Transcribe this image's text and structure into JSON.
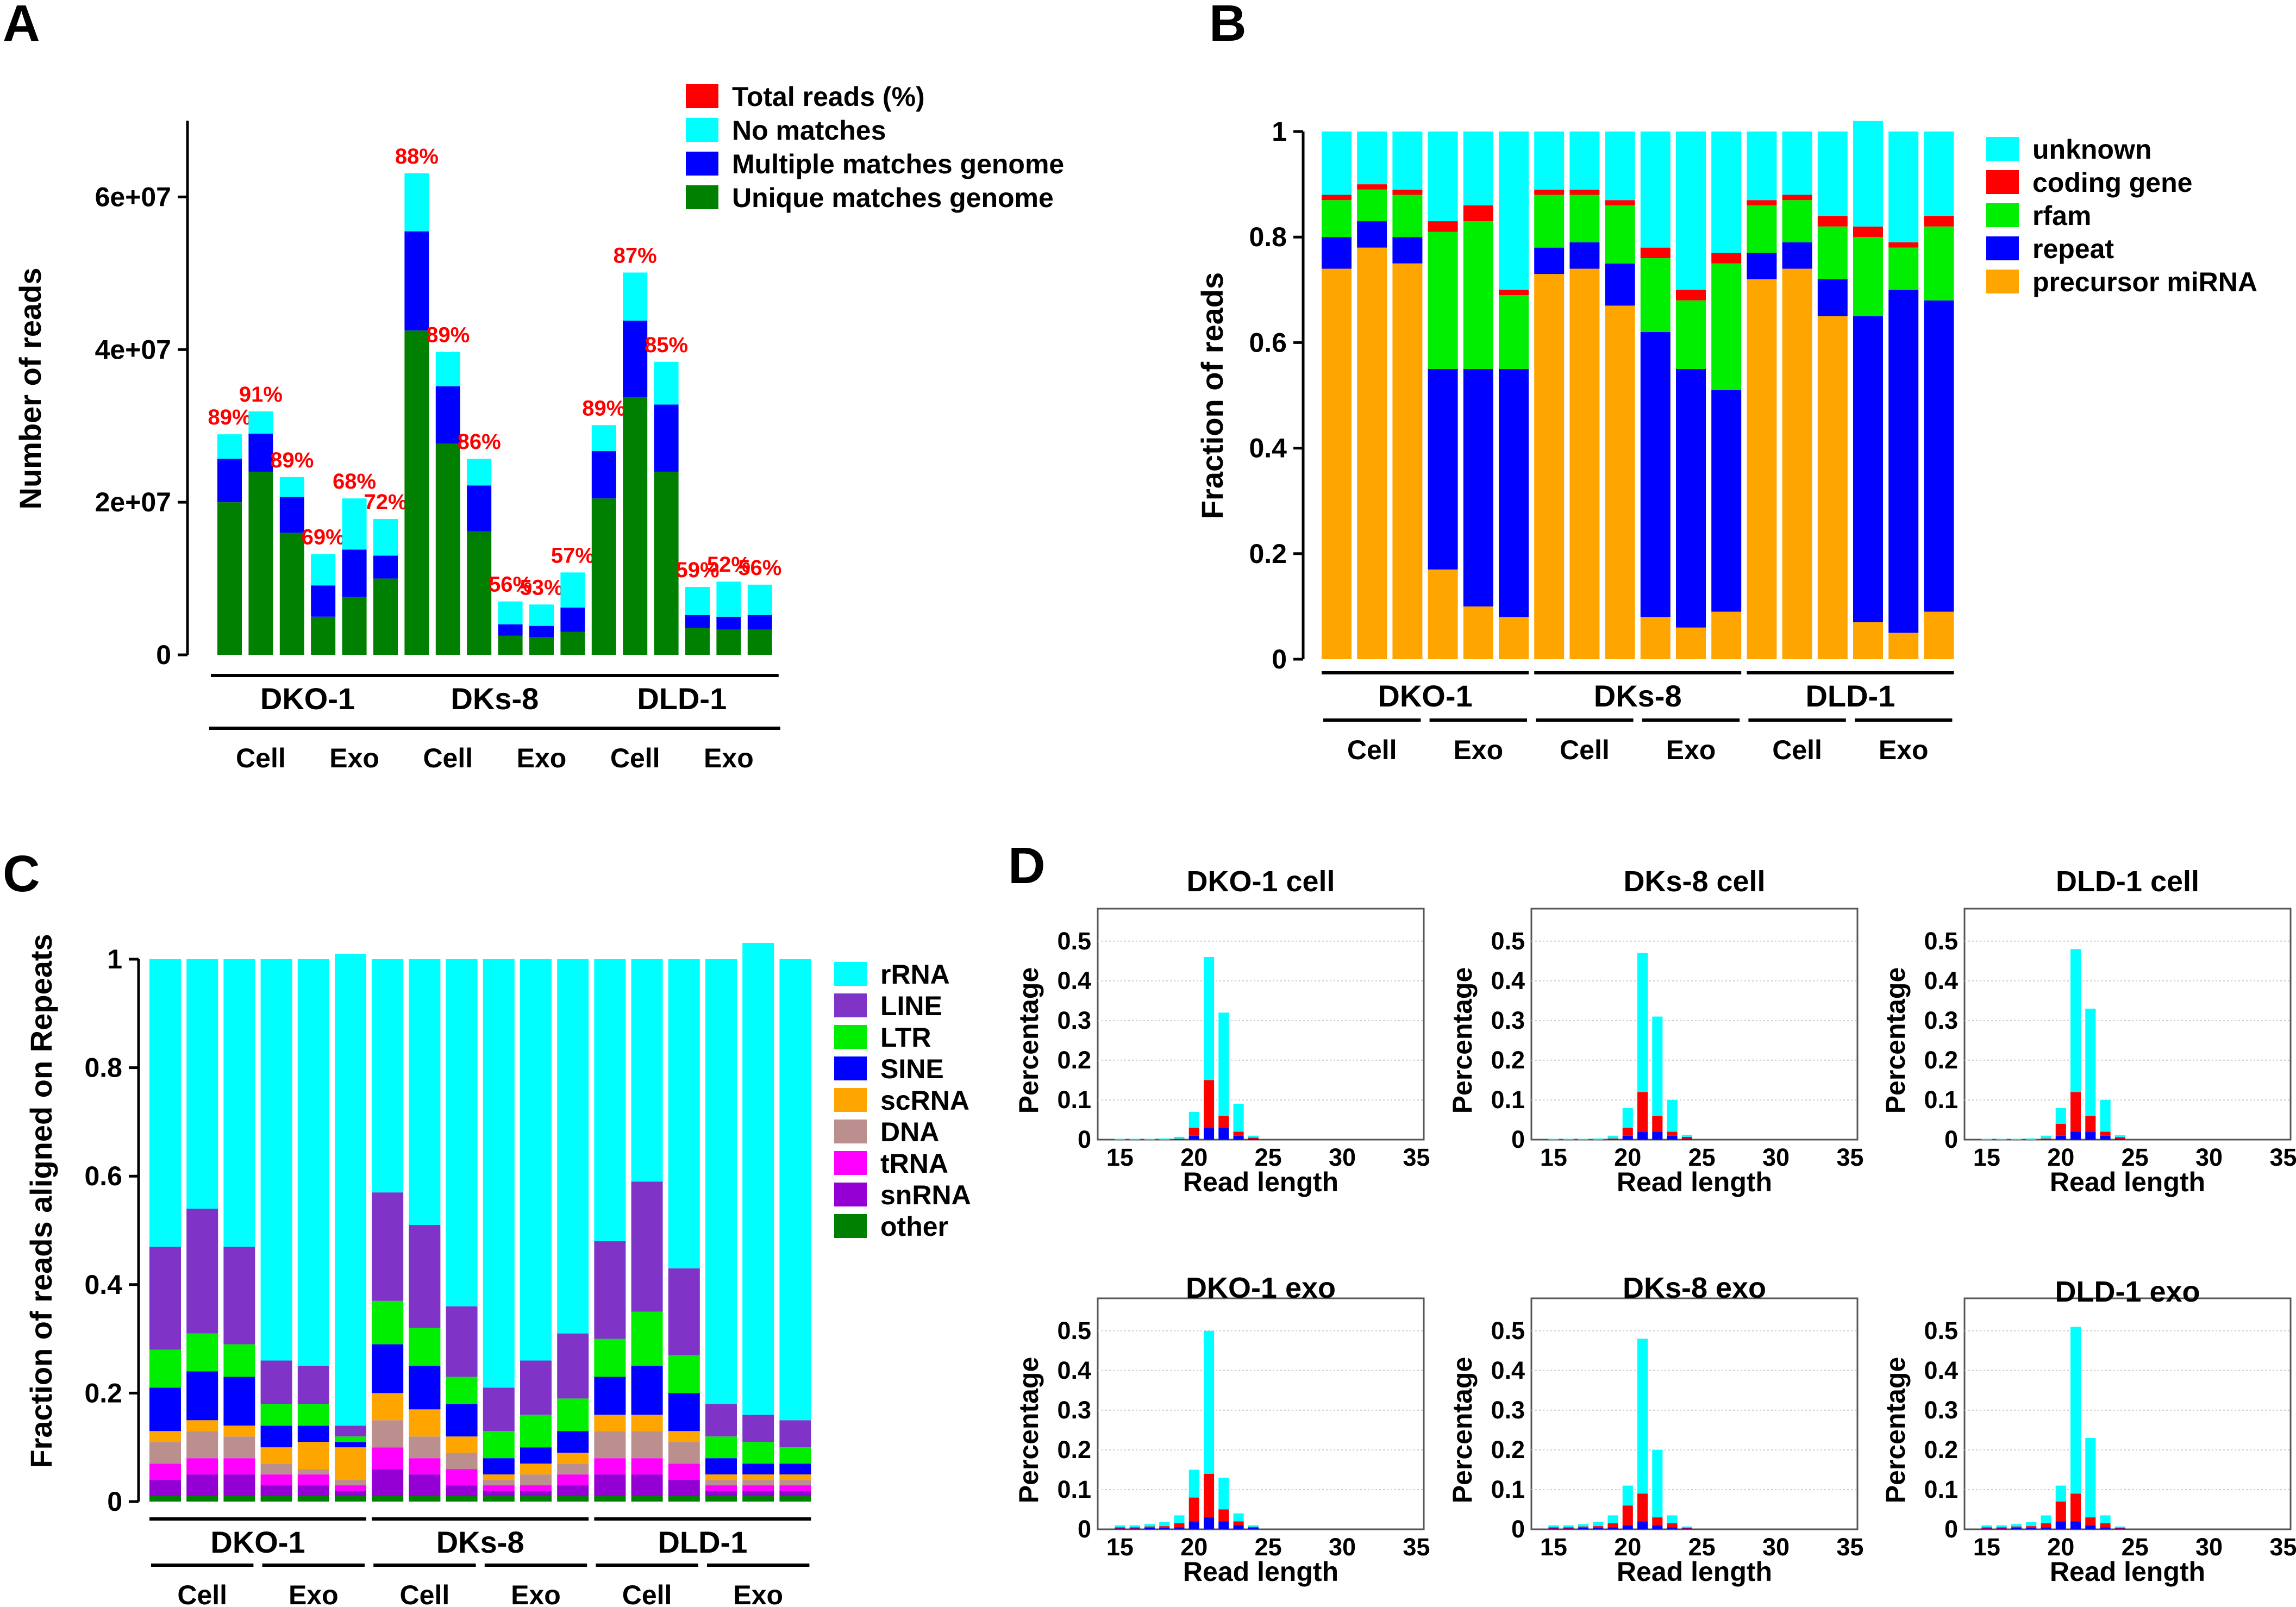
{
  "colors": {
    "total_reads": "#ff0000",
    "no_matches": "#00ffff",
    "multiple_matches": "#0000ff",
    "unique_matches": "#008000",
    "unknown": "#00ffff",
    "coding_gene": "#ff0000",
    "rfam": "#00ee00",
    "repeat": "#0000ff",
    "precursor_mirna": "#ffa500",
    "rRNA": "#00ffff",
    "LINE": "#7f33c7",
    "LTR": "#00ee00",
    "SINE": "#0000ff",
    "scRNA": "#ffa500",
    "DNA": "#bc8f8f",
    "tRNA": "#ff00ff",
    "snRNA": "#9400d3",
    "other": "#008000",
    "hist_cyan": "#00ffff",
    "hist_red": "#ff0000",
    "hist_blue": "#0000ff"
  },
  "panel_letters": [
    "A",
    "B",
    "C",
    "D"
  ],
  "groups": [
    "DKO-1",
    "DKs-8",
    "DLD-1"
  ],
  "subgroups": [
    "Cell",
    "Exo"
  ],
  "chart_data": [
    {
      "panel": "A",
      "type": "bar",
      "stacked": true,
      "ylabel": "Number of reads",
      "ylim": [
        0,
        70000000
      ],
      "yticks": [
        0,
        20000000,
        40000000,
        60000000
      ],
      "ytick_labels": [
        "0",
        "2e+07",
        "4e+07",
        "6e+07"
      ],
      "legend": [
        "Total reads (%)",
        "No matches",
        "Multiple matches genome",
        "Unique matches genome"
      ],
      "legend_position": "top-right",
      "series": [
        {
          "name": "Unique matches genome",
          "key": "unique_matches",
          "values": [
            20000000,
            24000000,
            16000000,
            5000000,
            7600000,
            10000000,
            42500000,
            27700000,
            16200000,
            2500000,
            2300000,
            3000000,
            20500000,
            33800000,
            24000000,
            3500000,
            3300000,
            3300000
          ]
        },
        {
          "name": "Multiple matches genome",
          "key": "multiple_matches",
          "values": [
            5700000,
            5000000,
            4700000,
            4100000,
            6200000,
            3000000,
            13000000,
            7500000,
            6000000,
            1500000,
            1500000,
            3200000,
            6200000,
            10000000,
            8800000,
            1700000,
            1700000,
            1900000
          ]
        },
        {
          "name": "No matches",
          "key": "no_matches",
          "values": [
            3200000,
            2900000,
            2600000,
            4100000,
            6700000,
            4800000,
            7600000,
            4500000,
            3500000,
            3000000,
            2800000,
            4600000,
            3400000,
            6300000,
            5600000,
            3700000,
            4600000,
            4000000
          ]
        }
      ],
      "percent_labels": [
        "89%",
        "91%",
        "89%",
        "69%",
        "68%",
        "72%",
        "88%",
        "89%",
        "86%",
        "56%",
        "53%",
        "57%",
        "89%",
        "87%",
        "85%",
        "59%",
        "52%",
        "56%"
      ],
      "bars_per_subgroup": 3
    },
    {
      "panel": "B",
      "type": "bar",
      "stacked": true,
      "ylabel": "Fraction of reads",
      "ylim": [
        0,
        1
      ],
      "yticks": [
        0,
        0.2,
        0.4,
        0.6,
        0.8,
        1
      ],
      "ytick_labels": [
        "0",
        "0.2",
        "0.4",
        "0.6",
        "0.8",
        "1"
      ],
      "legend": [
        "unknown",
        "coding gene",
        "rfam",
        "repeat",
        "precursor miRNA"
      ],
      "legend_position": "top-right",
      "series": [
        {
          "name": "precursor miRNA",
          "key": "precursor_mirna",
          "values": [
            0.74,
            0.78,
            0.75,
            0.17,
            0.1,
            0.08,
            0.73,
            0.74,
            0.67,
            0.08,
            0.06,
            0.09,
            0.72,
            0.74,
            0.65,
            0.07,
            0.05,
            0.09
          ]
        },
        {
          "name": "repeat",
          "key": "repeat",
          "values": [
            0.06,
            0.05,
            0.05,
            0.38,
            0.45,
            0.47,
            0.05,
            0.05,
            0.08,
            0.54,
            0.49,
            0.42,
            0.05,
            0.05,
            0.07,
            0.58,
            0.65,
            0.59
          ]
        },
        {
          "name": "rfam",
          "key": "rfam",
          "values": [
            0.07,
            0.06,
            0.08,
            0.26,
            0.28,
            0.14,
            0.1,
            0.09,
            0.11,
            0.14,
            0.13,
            0.24,
            0.09,
            0.08,
            0.1,
            0.15,
            0.08,
            0.14
          ]
        },
        {
          "name": "coding gene",
          "key": "coding_gene",
          "values": [
            0.01,
            0.01,
            0.01,
            0.02,
            0.03,
            0.01,
            0.01,
            0.01,
            0.01,
            0.02,
            0.02,
            0.02,
            0.01,
            0.01,
            0.02,
            0.02,
            0.01,
            0.02
          ]
        },
        {
          "name": "unknown",
          "key": "unknown",
          "values": [
            0.12,
            0.1,
            0.11,
            0.17,
            0.14,
            0.3,
            0.11,
            0.11,
            0.13,
            0.22,
            0.3,
            0.23,
            0.13,
            0.12,
            0.16,
            0.2,
            0.21,
            0.16
          ]
        }
      ],
      "bars_per_subgroup": 3
    },
    {
      "panel": "C",
      "type": "bar",
      "stacked": true,
      "ylabel": "Fraction of reads aligned on Repeats",
      "ylim": [
        0,
        1
      ],
      "yticks": [
        0,
        0.2,
        0.4,
        0.6,
        0.8,
        1
      ],
      "ytick_labels": [
        "0",
        "0.2",
        "0.4",
        "0.6",
        "0.8",
        "1"
      ],
      "legend": [
        "rRNA",
        "LINE",
        "LTR",
        "SINE",
        "scRNA",
        "DNA",
        "tRNA",
        "snRNA",
        "other"
      ],
      "legend_position": "right",
      "series": [
        {
          "name": "other",
          "key": "other",
          "values": [
            0.01,
            0.01,
            0.01,
            0.01,
            0.01,
            0.01,
            0.01,
            0.01,
            0.01,
            0.01,
            0.01,
            0.01,
            0.01,
            0.01,
            0.01,
            0.01,
            0.01,
            0.01
          ]
        },
        {
          "name": "snRNA",
          "key": "snRNA",
          "values": [
            0.03,
            0.04,
            0.04,
            0.02,
            0.02,
            0.01,
            0.05,
            0.04,
            0.02,
            0.01,
            0.01,
            0.02,
            0.04,
            0.04,
            0.03,
            0.01,
            0.01,
            0.01
          ]
        },
        {
          "name": "tRNA",
          "key": "tRNA",
          "values": [
            0.03,
            0.03,
            0.03,
            0.02,
            0.02,
            0.01,
            0.04,
            0.03,
            0.03,
            0.01,
            0.01,
            0.02,
            0.03,
            0.03,
            0.03,
            0.01,
            0.01,
            0.01
          ]
        },
        {
          "name": "DNA",
          "key": "DNA",
          "values": [
            0.04,
            0.05,
            0.04,
            0.02,
            0.01,
            0.01,
            0.05,
            0.04,
            0.03,
            0.01,
            0.02,
            0.02,
            0.05,
            0.05,
            0.04,
            0.01,
            0.01,
            0.01
          ]
        },
        {
          "name": "scRNA",
          "key": "scRNA",
          "values": [
            0.02,
            0.02,
            0.02,
            0.03,
            0.05,
            0.06,
            0.05,
            0.05,
            0.03,
            0.01,
            0.02,
            0.02,
            0.03,
            0.03,
            0.02,
            0.01,
            0.01,
            0.01
          ]
        },
        {
          "name": "SINE",
          "key": "SINE",
          "values": [
            0.08,
            0.09,
            0.09,
            0.04,
            0.03,
            0.01,
            0.09,
            0.08,
            0.06,
            0.03,
            0.03,
            0.04,
            0.07,
            0.09,
            0.07,
            0.03,
            0.02,
            0.02
          ]
        },
        {
          "name": "LTR",
          "key": "LTR",
          "values": [
            0.07,
            0.07,
            0.06,
            0.04,
            0.04,
            0.01,
            0.08,
            0.07,
            0.05,
            0.05,
            0.06,
            0.06,
            0.07,
            0.1,
            0.07,
            0.04,
            0.04,
            0.03
          ]
        },
        {
          "name": "LINE",
          "key": "LINE",
          "values": [
            0.19,
            0.23,
            0.18,
            0.08,
            0.07,
            0.02,
            0.2,
            0.19,
            0.13,
            0.08,
            0.1,
            0.12,
            0.18,
            0.24,
            0.16,
            0.06,
            0.05,
            0.05
          ]
        },
        {
          "name": "rRNA",
          "key": "rRNA",
          "values": [
            0.53,
            0.46,
            0.53,
            0.74,
            0.75,
            0.87,
            0.43,
            0.49,
            0.64,
            0.79,
            0.74,
            0.69,
            0.52,
            0.41,
            0.57,
            0.82,
            0.87,
            0.85
          ]
        }
      ],
      "bars_per_subgroup": 3
    },
    {
      "panel": "D",
      "type": "bar",
      "stacked": true,
      "xlabel": "Read length",
      "ylabel": "Percentage",
      "xlim": [
        13.5,
        35.5
      ],
      "ylim": [
        0,
        0.55
      ],
      "xticks": [
        15,
        20,
        25,
        30,
        35
      ],
      "yticks": [
        0,
        0.1,
        0.2,
        0.3,
        0.4,
        0.5
      ],
      "ytick_labels": [
        "0",
        "0.1",
        "0.2",
        "0.3",
        "0.4",
        "0.5"
      ],
      "series_names": [
        "blue",
        "red",
        "cyan"
      ],
      "histograms": [
        {
          "title": "DKO-1 cell",
          "x": [
            15,
            16,
            17,
            18,
            19,
            20,
            21,
            22,
            23,
            24
          ],
          "blue": [
            0,
            0,
            0,
            0,
            0.001,
            0.01,
            0.03,
            0.03,
            0.01,
            0.002
          ],
          "red": [
            0,
            0,
            0,
            0,
            0.001,
            0.02,
            0.12,
            0.03,
            0.01,
            0.003
          ],
          "cyan": [
            0.002,
            0.002,
            0.002,
            0.003,
            0.005,
            0.04,
            0.31,
            0.26,
            0.07,
            0.005
          ]
        },
        {
          "title": "DKs-8 cell",
          "x": [
            15,
            16,
            17,
            18,
            19,
            20,
            21,
            22,
            23,
            24
          ],
          "blue": [
            0,
            0,
            0,
            0,
            0.001,
            0.01,
            0.02,
            0.02,
            0.01,
            0.002
          ],
          "red": [
            0,
            0,
            0,
            0,
            0.002,
            0.02,
            0.1,
            0.04,
            0.01,
            0.005
          ],
          "cyan": [
            0.002,
            0.002,
            0.002,
            0.003,
            0.007,
            0.05,
            0.35,
            0.25,
            0.08,
            0.005
          ]
        },
        {
          "title": "DLD-1 cell",
          "x": [
            15,
            16,
            17,
            18,
            19,
            20,
            21,
            22,
            23,
            24
          ],
          "blue": [
            0,
            0,
            0,
            0,
            0.001,
            0.01,
            0.02,
            0.02,
            0.01,
            0.002
          ],
          "red": [
            0,
            0,
            0,
            0,
            0.002,
            0.03,
            0.1,
            0.04,
            0.01,
            0.004
          ],
          "cyan": [
            0.002,
            0.002,
            0.002,
            0.003,
            0.007,
            0.04,
            0.36,
            0.27,
            0.08,
            0.005
          ]
        },
        {
          "title": "DKO-1 exo",
          "x": [
            15,
            16,
            17,
            18,
            19,
            20,
            21,
            22,
            23,
            24
          ],
          "blue": [
            0.002,
            0.002,
            0.003,
            0.003,
            0.005,
            0.02,
            0.03,
            0.02,
            0.01,
            0.003
          ],
          "red": [
            0.003,
            0.003,
            0.004,
            0.005,
            0.01,
            0.06,
            0.11,
            0.03,
            0.01,
            0.003
          ],
          "cyan": [
            0.005,
            0.005,
            0.006,
            0.01,
            0.02,
            0.07,
            0.36,
            0.08,
            0.02,
            0.004
          ]
        },
        {
          "title": "DKs-8 exo",
          "x": [
            15,
            16,
            17,
            18,
            19,
            20,
            21,
            22,
            23,
            24
          ],
          "blue": [
            0.002,
            0.002,
            0.003,
            0.003,
            0.005,
            0.01,
            0.02,
            0.01,
            0.005,
            0.002
          ],
          "red": [
            0.003,
            0.003,
            0.004,
            0.005,
            0.01,
            0.05,
            0.07,
            0.02,
            0.01,
            0.002
          ],
          "cyan": [
            0.005,
            0.005,
            0.006,
            0.01,
            0.02,
            0.05,
            0.39,
            0.17,
            0.02,
            0.003
          ]
        },
        {
          "title": "DLD-1 exo",
          "x": [
            15,
            16,
            17,
            18,
            19,
            20,
            21,
            22,
            23,
            24
          ],
          "blue": [
            0.002,
            0.002,
            0.003,
            0.003,
            0.005,
            0.02,
            0.02,
            0.01,
            0.005,
            0.002
          ],
          "red": [
            0.003,
            0.003,
            0.004,
            0.005,
            0.01,
            0.05,
            0.07,
            0.02,
            0.01,
            0.002
          ],
          "cyan": [
            0.005,
            0.005,
            0.006,
            0.01,
            0.02,
            0.04,
            0.42,
            0.2,
            0.02,
            0.003
          ]
        }
      ]
    }
  ]
}
